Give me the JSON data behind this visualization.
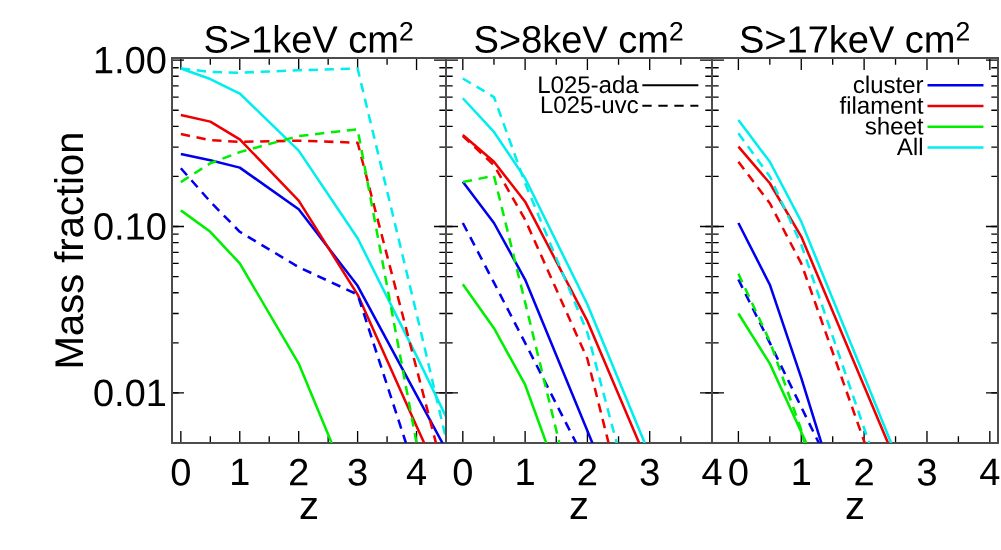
{
  "chart_data": [
    {
      "type": "line",
      "title": "S>1keV cm$^{2}$",
      "xlabel": "z",
      "ylabel": "Mass fraction",
      "log": "y",
      "xlim": [
        -0.15,
        4.5
      ],
      "ylim": [
        0.005,
        1.03
      ],
      "xticks": [
        0,
        1,
        2,
        3,
        4
      ],
      "yticks": [
        {
          "value": 0.01,
          "label": "0.01"
        },
        {
          "value": 0.1,
          "label": "0.10"
        },
        {
          "value": 1,
          "label": "1.00"
        }
      ],
      "series": [
        {
          "color": "#0000ee",
          "line_style": "solid",
          "x": [
            0,
            0.5,
            1,
            2,
            3,
            4,
            4.44
          ],
          "values": [
            0.273,
            0.25,
            0.226,
            0.127,
            0.044,
            0.0097,
            0.005
          ]
        },
        {
          "color": "#ee0000",
          "line_style": "solid",
          "x": [
            0,
            0.5,
            1,
            2,
            3,
            4,
            4.13
          ],
          "values": [
            0.468,
            0.427,
            0.334,
            0.143,
            0.039,
            0.0063,
            0.005
          ]
        },
        {
          "color": "#00ee00",
          "line_style": "solid",
          "x": [
            0,
            0.5,
            1,
            2,
            2.56
          ],
          "values": [
            0.125,
            0.093,
            0.06,
            0.015,
            0.005
          ]
        },
        {
          "color": "#00eeee",
          "line_style": "solid",
          "x": [
            0,
            0.5,
            1,
            2,
            3,
            4,
            4.5
          ],
          "values": [
            0.89,
            0.77,
            0.63,
            0.286,
            0.085,
            0.0167,
            0.0072
          ]
        },
        {
          "color": "#0000ee",
          "line_style": "dashed",
          "x": [
            0,
            0.5,
            1,
            2,
            3,
            3.82
          ],
          "values": [
            0.224,
            0.141,
            0.093,
            0.057,
            0.039,
            0.005
          ]
        },
        {
          "color": "#ee0000",
          "line_style": "dashed",
          "x": [
            0,
            0.5,
            1,
            2,
            3,
            4.33
          ],
          "values": [
            0.36,
            0.33,
            0.323,
            0.328,
            0.319,
            0.005
          ]
        },
        {
          "color": "#00ee00",
          "line_style": "dashed",
          "x": [
            0,
            0.5,
            1,
            2,
            3,
            4
          ],
          "values": [
            0.185,
            0.24,
            0.28,
            0.35,
            0.384,
            0.005
          ]
        },
        {
          "color": "#00eeee",
          "line_style": "dashed",
          "x": [
            0,
            0.5,
            1,
            2,
            3,
            4,
            4.49
          ],
          "values": [
            0.89,
            0.85,
            0.84,
            0.87,
            0.89,
            0.03,
            0.0055
          ]
        }
      ]
    },
    {
      "type": "line",
      "title": "S>8keV cm$^{2}$",
      "xlabel": "z",
      "log": "y",
      "tick_labels": "x",
      "legend": "top right",
      "annotations": [
        "L025-ada",
        "L025-uvc"
      ],
      "xlim": [
        -0.27,
        4
      ],
      "ylim": [
        0.005,
        1.03
      ],
      "xticks": [
        0,
        1,
        2,
        3,
        4
      ],
      "yticks": [
        {
          "value": 0.01,
          "label": null
        },
        {
          "value": 0.1,
          "label": null
        },
        {
          "value": 1,
          "label": null
        }
      ],
      "series": [
        {
          "color": "#0000ee",
          "line_style": "solid",
          "x": [
            0,
            0.5,
            1,
            2.08
          ],
          "values": [
            0.186,
            0.105,
            0.048,
            0.005
          ]
        },
        {
          "color": "#ee0000",
          "line_style": "solid",
          "x": [
            0,
            0.5,
            1,
            2,
            2.83
          ],
          "values": [
            0.355,
            0.245,
            0.141,
            0.027,
            0.005
          ]
        },
        {
          "color": "#00ee00",
          "line_style": "solid",
          "x": [
            0,
            0.5,
            1,
            1.34
          ],
          "values": [
            0.045,
            0.0245,
            0.0112,
            0.005
          ]
        },
        {
          "color": "#00eeee",
          "line_style": "solid",
          "x": [
            0,
            0.5,
            1,
            2,
            2.92
          ],
          "values": [
            0.59,
            0.37,
            0.195,
            0.034,
            0.005
          ]
        },
        {
          "color": "#0000ee",
          "line_style": "dashed",
          "x": [
            0,
            0.5,
            1,
            1.82
          ],
          "values": [
            0.105,
            0.046,
            0.02,
            0.005
          ]
        },
        {
          "color": "#ee0000",
          "line_style": "dashed",
          "x": [
            0,
            0.5,
            1,
            2,
            2.34
          ],
          "values": [
            0.35,
            0.234,
            0.11,
            0.016,
            0.005
          ]
        },
        {
          "color": "#00ee00",
          "line_style": "dashed",
          "x": [
            0,
            0.5,
            1,
            1.55
          ],
          "values": [
            0.185,
            0.202,
            0.035,
            0.005
          ]
        },
        {
          "color": "#00eeee",
          "line_style": "dashed",
          "x": [
            0,
            0.5,
            1,
            2,
            2.47
          ],
          "values": [
            0.776,
            0.6,
            0.182,
            0.023,
            0.005
          ]
        }
      ]
    },
    {
      "type": "line",
      "title": "S>17keV cm$^{2}$",
      "xlabel": "z",
      "log": "y",
      "tick_labels": "x",
      "legend": "top right",
      "xlim": [
        -0.42,
        4.13
      ],
      "ylim": [
        0.005,
        1.03
      ],
      "xticks": [
        0,
        1,
        2,
        3,
        4
      ],
      "yticks": [
        {
          "value": 0.01,
          "label": null
        },
        {
          "value": 0.1,
          "label": null
        },
        {
          "value": 1,
          "label": null
        }
      ],
      "series": [
        {
          "name": "cluster",
          "color": "#0000ee",
          "line_style": "solid",
          "x": [
            0,
            0.5,
            1,
            1.32
          ],
          "values": [
            0.105,
            0.0447,
            0.0123,
            0.005
          ]
        },
        {
          "name": "filament",
          "color": "#ee0000",
          "line_style": "solid",
          "x": [
            0,
            0.5,
            1,
            2.38
          ],
          "values": [
            0.302,
            0.182,
            0.087,
            0.005
          ]
        },
        {
          "name": "sheet",
          "color": "#00ee00",
          "line_style": "solid",
          "x": [
            0,
            0.5,
            1.08
          ],
          "values": [
            0.03,
            0.015,
            0.005
          ]
        },
        {
          "name": "All",
          "color": "#00eeee",
          "line_style": "solid",
          "x": [
            0,
            0.5,
            1,
            2,
            2.43
          ],
          "values": [
            0.437,
            0.245,
            0.107,
            0.0126,
            0.005
          ]
        },
        {
          "color": "#0000ee",
          "line_style": "dashed",
          "x": [
            0,
            0.5,
            1.28
          ],
          "values": [
            0.048,
            0.02,
            0.005
          ]
        },
        {
          "color": "#ee0000",
          "line_style": "dashed",
          "x": [
            0,
            0.5,
            1,
            2.01
          ],
          "values": [
            0.245,
            0.138,
            0.06,
            0.005
          ]
        },
        {
          "color": "#00ee00",
          "line_style": "dashed",
          "x": [
            0,
            0.5,
            1,
            1.05
          ],
          "values": [
            0.052,
            0.0204,
            0.006,
            0.005
          ]
        },
        {
          "color": "#00eeee",
          "line_style": "dashed",
          "x": [
            0,
            0.5,
            1,
            2.08
          ],
          "values": [
            0.363,
            0.2,
            0.078,
            0.005
          ]
        }
      ]
    }
  ]
}
